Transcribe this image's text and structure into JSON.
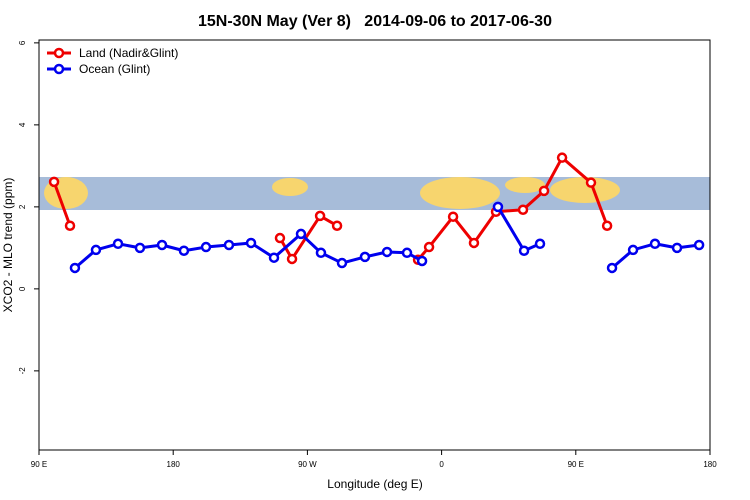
{
  "chart_data": {
    "type": "line",
    "title": "15N-30N May (Ver 8)   2014-09-06 to 2017-06-30",
    "x_label": "Longitude (deg E)",
    "y_label": "XCO2 - MLO trend (ppm)",
    "xlim": [
      90,
      540
    ],
    "ylim": [
      -3.93,
      6.07
    ],
    "xticks": [
      {
        "value": 90,
        "label": "90 E"
      },
      180,
      {
        "value": 270,
        "label": "90 W"
      },
      {
        "value": 360,
        "label": "0"
      },
      {
        "value": 450,
        "label": "90 E"
      },
      {
        "value": 540,
        "label": "180"
      }
    ],
    "yticks": [
      -2,
      0,
      2,
      4,
      6
    ],
    "legend": "top-left",
    "series": [
      {
        "name": "Land (Nadir&Glint)",
        "color": "#ee0000",
        "x": [
          100.1,
          110.8,
          null,
          251.6,
          259.7,
          278.5,
          289.9,
          null,
          344.2,
          351.6,
          367.7,
          381.7,
          396.5,
          414.6,
          428.7,
          440.8,
          460.2,
          471.0
        ],
        "values": [
          2.61,
          1.54,
          null,
          1.24,
          0.73,
          1.78,
          1.54,
          null,
          0.71,
          1.02,
          1.76,
          1.12,
          1.88,
          1.93,
          2.39,
          3.2,
          2.59,
          1.54
        ]
      },
      {
        "name": "Ocean (Glint)",
        "color": "#0000ee",
        "x": [
          114.1,
          128.2,
          143.0,
          157.7,
          172.5,
          187.2,
          202.0,
          217.4,
          232.2,
          247.6,
          265.7,
          279.1,
          293.2,
          308.6,
          323.4,
          336.8,
          346.9,
          null,
          397.8,
          415.3,
          426.0,
          null,
          474.3,
          488.4,
          503.1,
          517.9,
          532.7
        ],
        "values": [
          0.51,
          0.95,
          1.1,
          1.0,
          1.07,
          0.93,
          1.02,
          1.07,
          1.12,
          0.76,
          1.34,
          0.88,
          0.63,
          0.78,
          0.9,
          0.88,
          0.68,
          null,
          2.0,
          0.93,
          1.1,
          null,
          0.51,
          0.95,
          1.1,
          1.0,
          1.07
        ]
      }
    ]
  }
}
